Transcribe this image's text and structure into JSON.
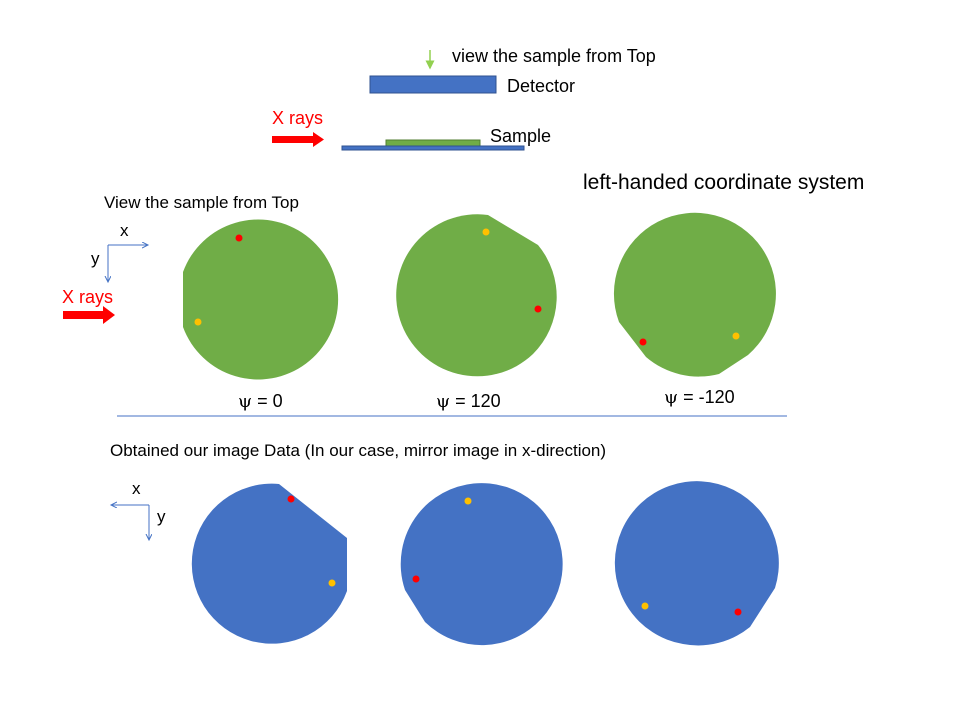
{
  "setup": {
    "view_label": "view the sample from Top",
    "detector_label": "Detector",
    "xrays_label": "X rays",
    "sample_label": "Sample"
  },
  "coord_system_title": "left-handed coordinate system",
  "top_section": {
    "title": "View the sample from Top",
    "axis_x": "x",
    "axis_y": "y",
    "xrays_label": "X rays",
    "samples": [
      {
        "psi_symbol": "ψ",
        "psi_text": " = 0"
      },
      {
        "psi_symbol": "ψ",
        "psi_text": " = 120"
      },
      {
        "psi_symbol": "ψ",
        "psi_text": " = -120"
      }
    ]
  },
  "bottom_section": {
    "title": "Obtained our image Data (In our case, mirror image in x-direction)",
    "axis_x": "x",
    "axis_y": "y"
  },
  "colors": {
    "sample_green": "#70ad47",
    "image_blue": "#4472c4",
    "xray_red": "#ff0000",
    "dot_red": "#ff0000",
    "dot_yellow": "#ffc000",
    "arrow_green": "#92d050",
    "detector_blue": "#4472c4",
    "axis_blue": "#4472c4"
  }
}
